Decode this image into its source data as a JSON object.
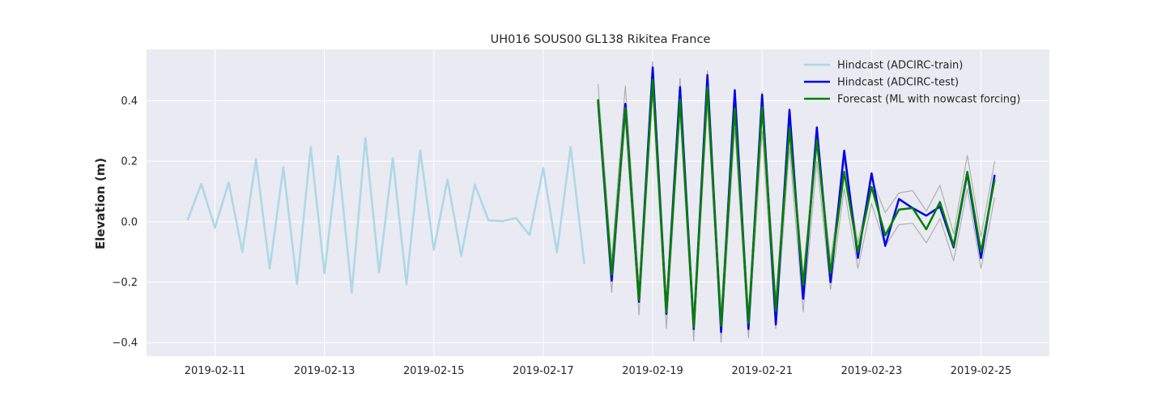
{
  "chart_data": {
    "type": "line",
    "title": "UH016 SOUS00 GL138 Rikitea France",
    "xlabel": "",
    "ylabel": "Elevation (m)",
    "x_axis_type": "date",
    "xlim": [
      "2019-02-09T18:00",
      "2019-02-26T06:00"
    ],
    "ylim": [
      -0.445,
      0.57
    ],
    "x_ticks": [
      "2019-02-11",
      "2019-02-13",
      "2019-02-15",
      "2019-02-17",
      "2019-02-19",
      "2019-02-21",
      "2019-02-23",
      "2019-02-25"
    ],
    "y_ticks": [
      -0.4,
      -0.2,
      0.0,
      0.2,
      0.4
    ],
    "y_tick_labels": [
      "−0.4",
      "−0.2",
      "0.0",
      "0.2",
      "0.4"
    ],
    "grid": true,
    "legend_position": "top-right",
    "background_color": "#eaeaf2",
    "series": [
      {
        "name": "Hindcast (ADCIRC-train)",
        "color": "#add8e6",
        "x": [
          "2019-02-10T12:00",
          "2019-02-10T18:00",
          "2019-02-11T00:00",
          "2019-02-11T06:00",
          "2019-02-11T12:00",
          "2019-02-11T18:00",
          "2019-02-12T00:00",
          "2019-02-12T06:00",
          "2019-02-12T12:00",
          "2019-02-12T18:00",
          "2019-02-13T00:00",
          "2019-02-13T06:00",
          "2019-02-13T12:00",
          "2019-02-13T18:00",
          "2019-02-14T00:00",
          "2019-02-14T06:00",
          "2019-02-14T12:00",
          "2019-02-14T18:00",
          "2019-02-15T00:00",
          "2019-02-15T06:00",
          "2019-02-15T12:00",
          "2019-02-15T18:00",
          "2019-02-16T00:00",
          "2019-02-16T06:00",
          "2019-02-16T12:00",
          "2019-02-16T18:00",
          "2019-02-17T00:00",
          "2019-02-17T06:00",
          "2019-02-17T12:00",
          "2019-02-17T18:00"
        ],
        "values": [
          0.005,
          0.125,
          -0.02,
          0.13,
          -0.1,
          0.207,
          -0.155,
          0.18,
          -0.207,
          0.247,
          -0.17,
          0.217,
          -0.235,
          0.277,
          -0.168,
          0.21,
          -0.207,
          0.236,
          -0.093,
          0.14,
          -0.113,
          0.123,
          0.004,
          0.002,
          0.012,
          -0.044,
          0.177,
          -0.102,
          0.247,
          -0.14
        ]
      },
      {
        "name": "Hindcast (ADCIRC-test)",
        "color": "#0000ee",
        "x": [
          "2019-02-18T00:00",
          "2019-02-18T06:00",
          "2019-02-18T12:00",
          "2019-02-18T18:00",
          "2019-02-19T00:00",
          "2019-02-19T06:00",
          "2019-02-19T12:00",
          "2019-02-19T18:00",
          "2019-02-20T00:00",
          "2019-02-20T06:00",
          "2019-02-20T12:00",
          "2019-02-20T18:00",
          "2019-02-21T00:00",
          "2019-02-21T06:00",
          "2019-02-21T12:00",
          "2019-02-21T18:00",
          "2019-02-22T00:00",
          "2019-02-22T06:00",
          "2019-02-22T12:00",
          "2019-02-22T18:00",
          "2019-02-23T00:00",
          "2019-02-23T06:00",
          "2019-02-23T12:00",
          "2019-02-23T18:00",
          "2019-02-24T00:00",
          "2019-02-24T06:00",
          "2019-02-24T12:00",
          "2019-02-24T18:00",
          "2019-02-25T00:00",
          "2019-02-25T06:00"
        ],
        "values": [
          0.4,
          -0.195,
          0.39,
          -0.265,
          0.51,
          -0.305,
          0.445,
          -0.355,
          0.485,
          -0.365,
          0.435,
          -0.355,
          0.42,
          -0.34,
          0.37,
          -0.255,
          0.312,
          -0.2,
          0.235,
          -0.12,
          0.16,
          -0.08,
          0.075,
          0.045,
          0.02,
          0.05,
          -0.085,
          0.16,
          -0.12,
          0.155
        ]
      },
      {
        "name": "Forecast (ML with nowcast forcing)",
        "color": "#008000",
        "x": [
          "2019-02-18T00:00",
          "2019-02-18T06:00",
          "2019-02-18T12:00",
          "2019-02-18T18:00",
          "2019-02-19T00:00",
          "2019-02-19T06:00",
          "2019-02-19T12:00",
          "2019-02-19T18:00",
          "2019-02-20T00:00",
          "2019-02-20T06:00",
          "2019-02-20T12:00",
          "2019-02-20T18:00",
          "2019-02-21T00:00",
          "2019-02-21T06:00",
          "2019-02-21T12:00",
          "2019-02-21T18:00",
          "2019-02-22T00:00",
          "2019-02-22T06:00",
          "2019-02-22T12:00",
          "2019-02-22T18:00",
          "2019-02-23T00:00",
          "2019-02-23T06:00",
          "2019-02-23T12:00",
          "2019-02-23T18:00",
          "2019-02-24T00:00",
          "2019-02-24T06:00",
          "2019-02-24T12:00",
          "2019-02-24T18:00",
          "2019-02-25T00:00",
          "2019-02-25T06:00"
        ],
        "values": [
          0.405,
          -0.175,
          0.375,
          -0.26,
          0.47,
          -0.3,
          0.405,
          -0.35,
          0.445,
          -0.345,
          0.375,
          -0.335,
          0.38,
          -0.295,
          0.31,
          -0.21,
          0.27,
          -0.17,
          0.165,
          -0.1,
          0.115,
          -0.045,
          0.04,
          0.045,
          -0.025,
          0.065,
          -0.08,
          0.165,
          -0.1,
          0.14
        ]
      }
    ],
    "uncertainty_band": {
      "color": "#b0b0b0",
      "x": [
        "2019-02-18T00:00",
        "2019-02-18T06:00",
        "2019-02-18T12:00",
        "2019-02-18T18:00",
        "2019-02-19T00:00",
        "2019-02-19T06:00",
        "2019-02-19T12:00",
        "2019-02-19T18:00",
        "2019-02-20T00:00",
        "2019-02-20T06:00",
        "2019-02-20T12:00",
        "2019-02-20T18:00",
        "2019-02-21T00:00",
        "2019-02-21T06:00",
        "2019-02-21T12:00",
        "2019-02-21T18:00",
        "2019-02-22T00:00",
        "2019-02-22T06:00",
        "2019-02-22T12:00",
        "2019-02-22T18:00",
        "2019-02-23T00:00",
        "2019-02-23T06:00",
        "2019-02-23T12:00",
        "2019-02-23T18:00",
        "2019-02-24T00:00",
        "2019-02-24T06:00",
        "2019-02-24T12:00",
        "2019-02-24T18:00",
        "2019-02-25T00:00",
        "2019-02-25T06:00"
      ],
      "upper": [
        0.455,
        -0.13,
        0.45,
        -0.21,
        0.53,
        -0.25,
        0.475,
        -0.31,
        0.5,
        -0.3,
        0.435,
        -0.3,
        0.43,
        -0.255,
        0.355,
        -0.18,
        0.3,
        -0.13,
        0.2,
        -0.07,
        0.14,
        0.03,
        0.095,
        0.103,
        0.035,
        0.12,
        -0.04,
        0.22,
        -0.05,
        0.2
      ],
      "lower": [
        0.38,
        -0.235,
        0.34,
        -0.31,
        0.43,
        -0.355,
        0.36,
        -0.395,
        0.39,
        -0.4,
        0.31,
        -0.385,
        0.3,
        -0.355,
        0.245,
        -0.3,
        0.2,
        -0.225,
        0.11,
        -0.155,
        0.06,
        -0.08,
        -0.01,
        -0.005,
        -0.07,
        0.01,
        -0.13,
        0.11,
        -0.155,
        0.08
      ]
    }
  }
}
